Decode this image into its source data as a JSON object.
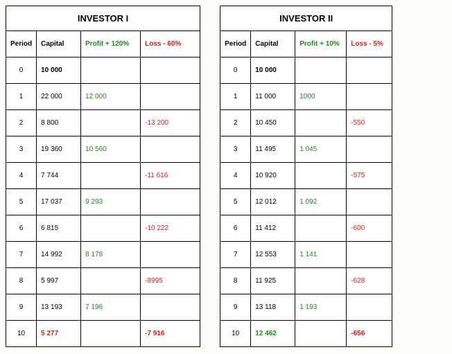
{
  "investors": [
    {
      "title": "INVESTOR I",
      "headers": {
        "period": "Period",
        "capital": "Capital",
        "profit": "Profit + 120%",
        "loss": "Loss - 60%"
      },
      "rows": [
        {
          "period": "0",
          "capital": "10 000",
          "profit": "",
          "loss": "",
          "cap_bold": true
        },
        {
          "period": "1",
          "capital": "22 000",
          "profit": "12 000",
          "loss": ""
        },
        {
          "period": "2",
          "capital": "8 800",
          "profit": "",
          "loss": "-13 200"
        },
        {
          "period": "3",
          "capital": "19 360",
          "profit": "10 560",
          "loss": ""
        },
        {
          "period": "4",
          "capital": "7 744",
          "profit": "",
          "loss": "-11 616"
        },
        {
          "period": "5",
          "capital": "17 037",
          "profit": "9 293",
          "loss": ""
        },
        {
          "period": "6",
          "capital": "6 815",
          "profit": "",
          "loss": "-10 222"
        },
        {
          "period": "7",
          "capital": "14 992",
          "profit": "8 178",
          "loss": ""
        },
        {
          "period": "8",
          "capital": "5 997",
          "profit": "",
          "loss": "-8995"
        },
        {
          "period": "9",
          "capital": "13 193",
          "profit": "7 196",
          "loss": ""
        },
        {
          "period": "10",
          "capital": "5 277",
          "profit": "",
          "loss": "-7 916",
          "cap_bold": true,
          "cap_color": "red",
          "loss_bold": true
        }
      ]
    },
    {
      "title": "INVESTOR II",
      "headers": {
        "period": "Period",
        "capital": "Capital",
        "profit": "Profit + 10%",
        "loss": "Loss - 5%"
      },
      "rows": [
        {
          "period": "0",
          "capital": "10 000",
          "profit": "",
          "loss": "",
          "cap_bold": true
        },
        {
          "period": "1",
          "capital": "11 000",
          "profit": "1000",
          "loss": ""
        },
        {
          "period": "2",
          "capital": "10 450",
          "profit": "",
          "loss": "-550"
        },
        {
          "period": "3",
          "capital": "11 495",
          "profit": "1 045",
          "loss": ""
        },
        {
          "period": "4",
          "capital": "10 920",
          "profit": "",
          "loss": "-575"
        },
        {
          "period": "5",
          "capital": "12 012",
          "profit": "1 092",
          "loss": ""
        },
        {
          "period": "6",
          "capital": "11 412",
          "profit": "",
          "loss": "-600"
        },
        {
          "period": "7",
          "capital": "12 553",
          "profit": "1 141",
          "loss": ""
        },
        {
          "period": "8",
          "capital": "11 925",
          "profit": "",
          "loss": "-628"
        },
        {
          "period": "9",
          "capital": "13 118",
          "profit": "1 193",
          "loss": ""
        },
        {
          "period": "10",
          "capital": "12 462",
          "profit": "",
          "loss": "-656",
          "cap_bold": true,
          "cap_color": "green",
          "loss_bold": true
        }
      ]
    }
  ]
}
